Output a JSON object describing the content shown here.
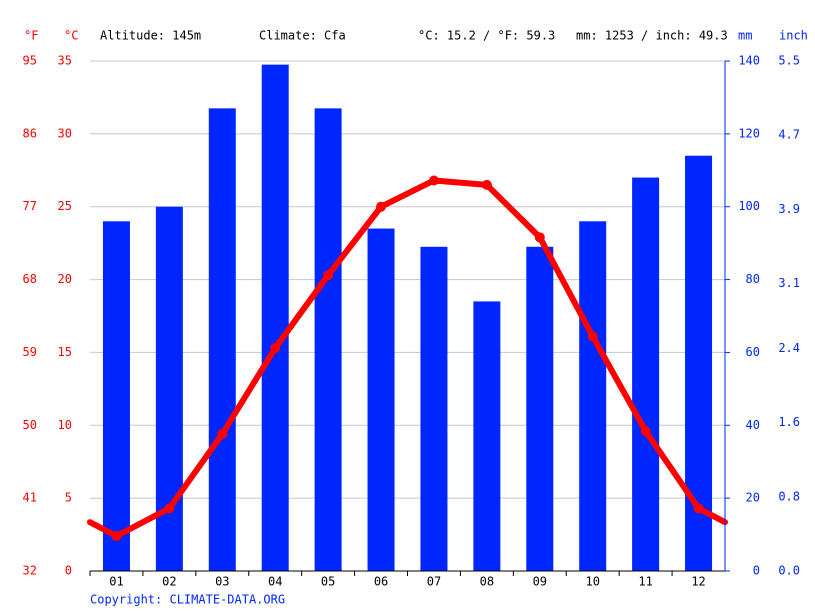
{
  "chart_data": {
    "type": "bar",
    "header": {
      "f_unit": "°F",
      "c_unit": "°C",
      "altitude": "Altitude: 145m",
      "climate": "Climate: Cfa",
      "temp_avg": "°C: 15.2 / °F: 59.3",
      "precip_sum": "mm: 1253 / inch: 49.3",
      "mm_unit": "mm",
      "inch_unit": "inch"
    },
    "categories": [
      "01",
      "02",
      "03",
      "04",
      "05",
      "06",
      "07",
      "08",
      "09",
      "10",
      "11",
      "12"
    ],
    "series": [
      {
        "type": "bar",
        "color": "#0026ff",
        "axis": "y2",
        "values": [
          96,
          100,
          127,
          139,
          127,
          94,
          89,
          74,
          89,
          96,
          108,
          114
        ]
      },
      {
        "type": "line",
        "color": "#ff0000",
        "values": [
          2.4,
          4.3,
          9.4,
          15.3,
          20.3,
          25.0,
          26.8,
          26.5,
          22.9,
          16.1,
          9.6,
          4.3
        ]
      }
    ],
    "ylim": [
      0,
      35
    ],
    "yticks": [
      0,
      5,
      10,
      15,
      20,
      25,
      30,
      35
    ],
    "yflim": [
      32,
      95
    ],
    "yfticks": [
      32,
      41,
      50,
      59,
      68,
      77,
      86,
      95
    ],
    "y2lim": [
      0,
      140
    ],
    "y2ticks": [
      0,
      20,
      40,
      60,
      80,
      100,
      120,
      140
    ],
    "y2inchlim": [
      0,
      5.5
    ],
    "y2inchticks": [
      {
        "value": 0,
        "label": "0.0"
      },
      0.8,
      1.6,
      2.4,
      3.1,
      3.9,
      4.7,
      5.5
    ],
    "grid": true,
    "copyright": "Copyright: CLIMATE-DATA.ORG"
  }
}
